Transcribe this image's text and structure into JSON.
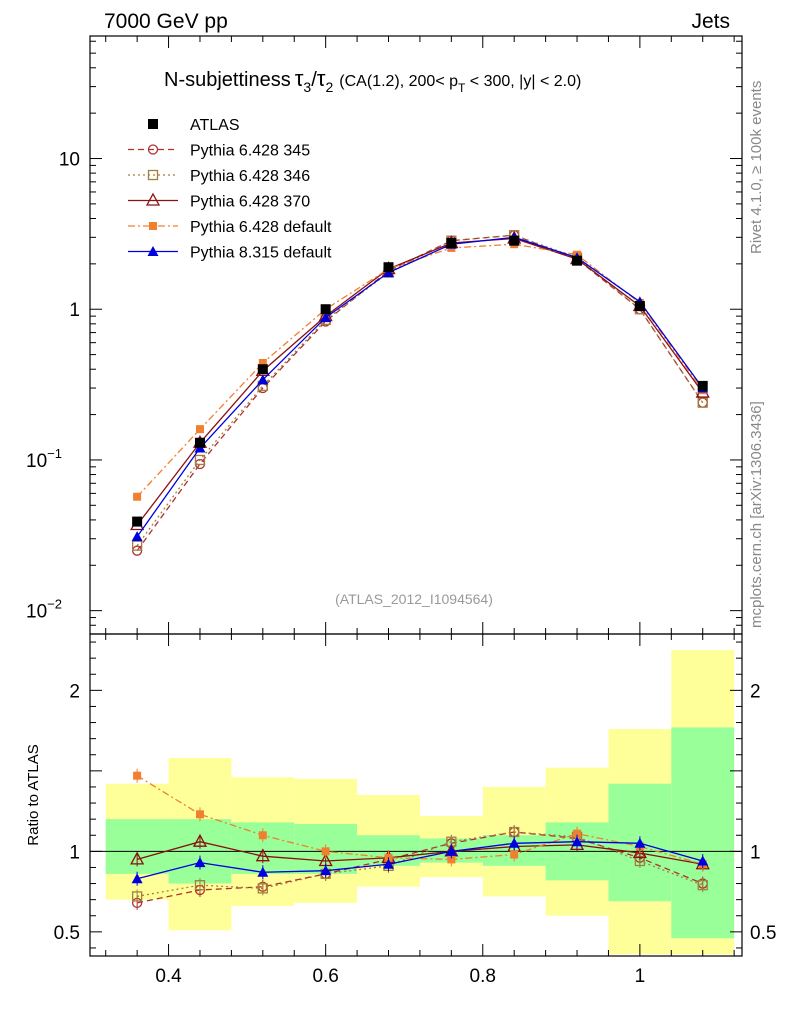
{
  "header": {
    "left": "7000 GeV pp",
    "right": "Jets"
  },
  "title": {
    "main": "N-subjettiness",
    "tau_num": "τ",
    "tau_num_sub": "3",
    "slash": "/",
    "tau_den": "τ",
    "tau_den_sub": "2",
    "cut_a": "(CA(1.2), 200< p",
    "cut_sub": "T",
    "cut_b": " < 300, |y| < 2.0)"
  },
  "side_labels": {
    "rivet": "Rivet 4.1.0, ≥ 100k events",
    "mcplots": "mcplots.cern.ch [arXiv:1306.3436]"
  },
  "analysis_label": "(ATLAS_2012_I1094564)",
  "ratio_ylabel": "Ratio to ATLAS",
  "chart_data": {
    "type": "line",
    "title": "N-subjettiness τ3/τ2 (CA(1.2), 200< pT < 300, |y| < 2.0)",
    "x": [
      0.36,
      0.44,
      0.52,
      0.6,
      0.68,
      0.76,
      0.84,
      0.92,
      1.0,
      1.08
    ],
    "bin_edges": [
      0.32,
      0.4,
      0.48,
      0.56,
      0.64,
      0.72,
      0.8,
      0.88,
      0.96,
      1.04,
      1.12
    ],
    "xlim": [
      0.3,
      1.13
    ],
    "main_ylim": [
      0.007,
      65
    ],
    "main_yscale": "log",
    "main_yticks": [
      {
        "value": 10,
        "label": "10",
        "exp": ""
      },
      {
        "value": 1,
        "label": "1",
        "exp": ""
      },
      {
        "value": 0.1,
        "label": "10",
        "exp": "−1"
      },
      {
        "value": 0.01,
        "label": "10",
        "exp": "−2"
      }
    ],
    "ratio_ylim": [
      0.35,
      2.35
    ],
    "ratio_yticks": [
      "0.5",
      "1",
      "2"
    ],
    "ratio_ytick_values": [
      0.5,
      1,
      2
    ],
    "xticks": [
      "0.4",
      "0.6",
      "0.8",
      "1"
    ],
    "xtick_values": [
      0.4,
      0.6,
      0.8,
      1.0
    ],
    "data": {
      "name": "ATLAS",
      "color": "#000000",
      "values": [
        0.039,
        0.13,
        0.4,
        1.0,
        1.9,
        2.75,
        2.85,
        2.1,
        1.05,
        0.31
      ],
      "band_inner": [
        [
          0.86,
          1.2
        ],
        [
          0.8,
          1.2
        ],
        [
          0.86,
          1.18
        ],
        [
          0.86,
          1.17
        ],
        [
          0.91,
          1.1
        ],
        [
          0.93,
          1.08
        ],
        [
          0.91,
          1.1
        ],
        [
          0.82,
          1.18
        ],
        [
          0.69,
          1.42
        ],
        [
          0.46,
          1.77
        ]
      ],
      "band_outer": [
        [
          0.7,
          1.42
        ],
        [
          0.51,
          1.58
        ],
        [
          0.66,
          1.46
        ],
        [
          0.68,
          1.45
        ],
        [
          0.78,
          1.35
        ],
        [
          0.84,
          1.22
        ],
        [
          0.72,
          1.4
        ],
        [
          0.6,
          1.52
        ],
        [
          0.36,
          1.76
        ],
        [
          0.36,
          2.25
        ]
      ]
    },
    "series": [
      {
        "name": "Pythia 6.428 345",
        "color": "#b03030",
        "dash": "6,4",
        "marker": "circle-open",
        "values": [
          0.025,
          0.094,
          0.3,
          0.83,
          1.8,
          2.85,
          3.1,
          2.15,
          1.0,
          0.24
        ],
        "ratio": [
          0.68,
          0.76,
          0.78,
          0.86,
          0.95,
          1.05,
          1.12,
          1.08,
          0.96,
          0.8
        ]
      },
      {
        "name": "Pythia 6.428 346",
        "color": "#a08040",
        "dash": "2,3",
        "marker": "square-open",
        "values": [
          0.027,
          0.1,
          0.31,
          0.85,
          1.75,
          2.85,
          3.1,
          2.2,
          1.0,
          0.24
        ],
        "ratio": [
          0.72,
          0.79,
          0.77,
          0.86,
          0.91,
          1.06,
          1.12,
          1.09,
          0.94,
          0.79
        ]
      },
      {
        "name": "Pythia 6.428 370",
        "color": "#8b1010",
        "dash": "",
        "marker": "triangle-open",
        "values": [
          0.037,
          0.13,
          0.39,
          0.9,
          1.85,
          2.75,
          2.95,
          2.15,
          1.05,
          0.28
        ],
        "ratio": [
          0.95,
          1.06,
          0.97,
          0.94,
          0.96,
          1.0,
          1.03,
          1.04,
          0.99,
          0.92
        ]
      },
      {
        "name": "Pythia 6.428 default",
        "color": "#f08030",
        "dash": "7,3,2,3",
        "marker": "square-filled",
        "values": [
          0.057,
          0.16,
          0.44,
          1.0,
          1.85,
          2.55,
          2.7,
          2.3,
          1.1,
          0.29
        ],
        "ratio": [
          1.47,
          1.23,
          1.1,
          1.0,
          0.96,
          0.95,
          0.98,
          1.11,
          1.03,
          0.92
        ]
      },
      {
        "name": "Pythia 8.315 default",
        "color": "#0000dd",
        "dash": "",
        "marker": "triangle-filled",
        "values": [
          0.031,
          0.12,
          0.34,
          0.88,
          1.75,
          2.7,
          3.0,
          2.2,
          1.12,
          0.3
        ],
        "ratio": [
          0.83,
          0.93,
          0.87,
          0.88,
          0.92,
          1.0,
          1.05,
          1.06,
          1.05,
          0.94
        ]
      }
    ]
  }
}
